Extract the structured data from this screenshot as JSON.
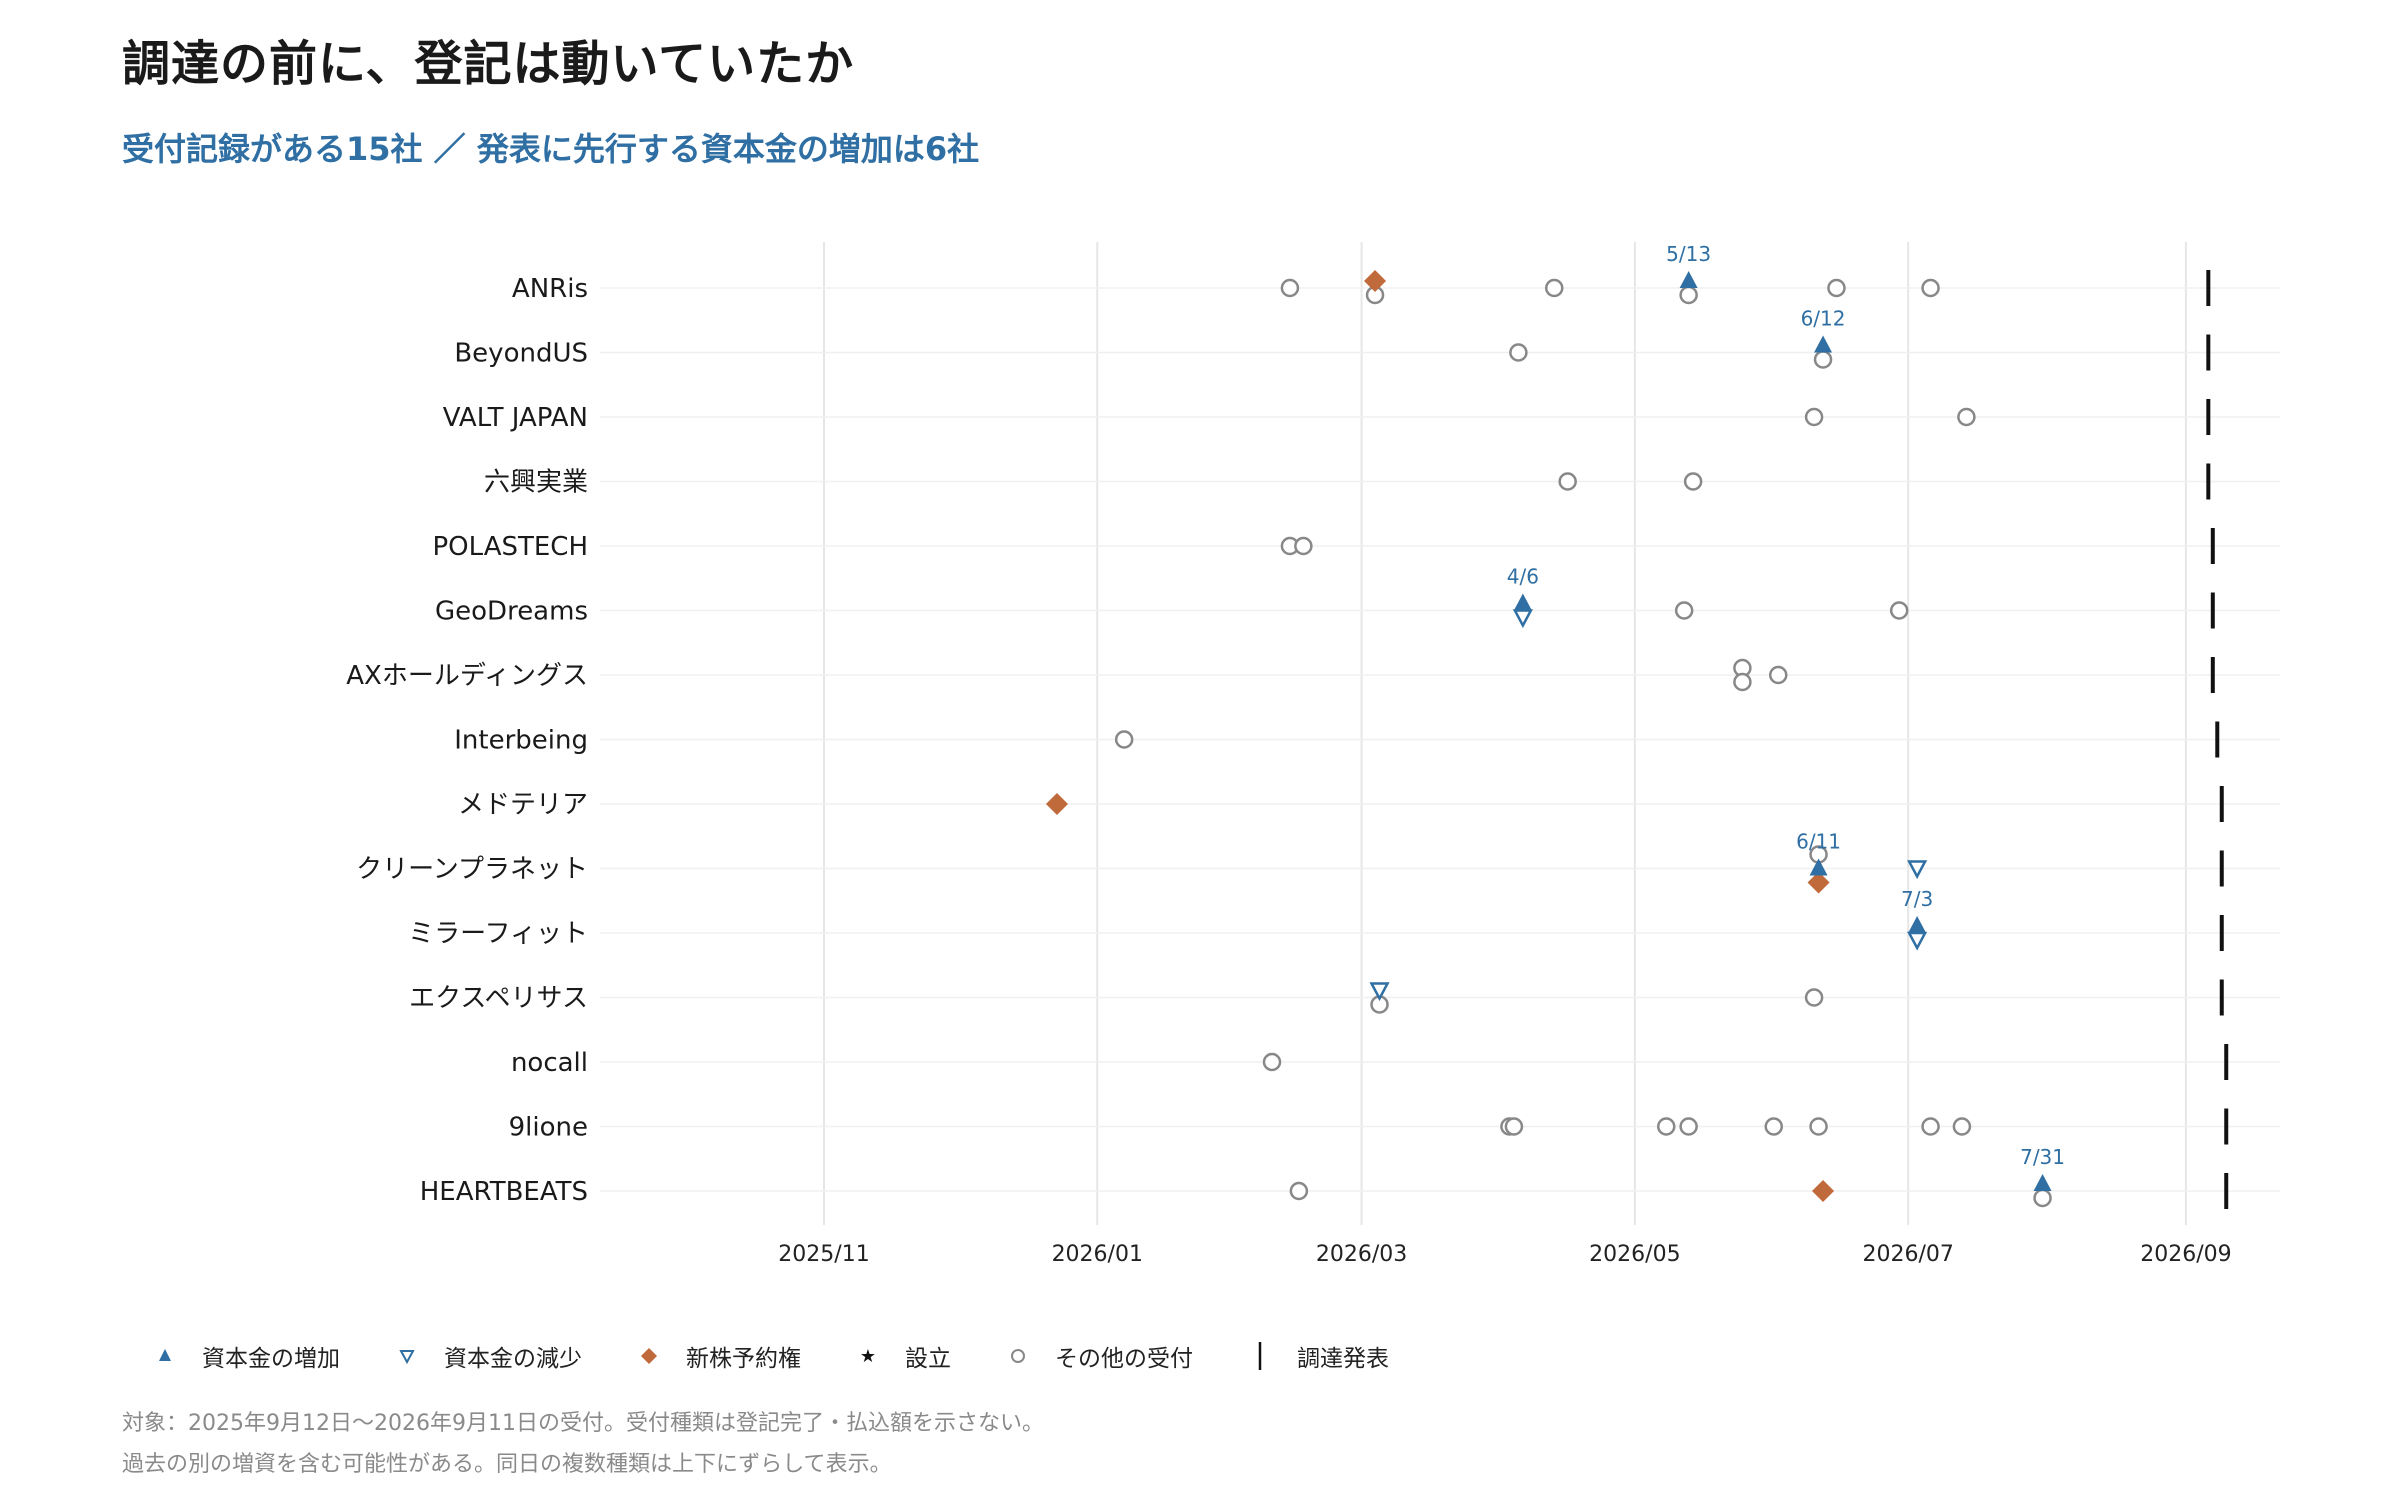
{
  "title": "調達の前に、登記は動いていたか",
  "subtitle": "受付記録がある15社 ／ 発表に先行する資本金の増加は6社",
  "footnote": {
    "line1": "対象：2025年9月12日〜2026年9月11日の受付。受付種類は登記完了・払込額を示さない。",
    "line2": "過去の別の増資を含む可能性がある。同日の複数種類は上下にずらして表示。"
  },
  "legend": [
    {
      "key": "increase",
      "label": "資本金の増加",
      "symbol": "triangle-up-filled-icon"
    },
    {
      "key": "decrease",
      "label": "資本金の減少",
      "symbol": "triangle-down-outline-icon"
    },
    {
      "key": "option",
      "label": "新株予約権",
      "symbol": "diamond-filled-icon"
    },
    {
      "key": "founding",
      "label": "設立",
      "symbol": "star-icon"
    },
    {
      "key": "other",
      "label": "その他の受付",
      "symbol": "circle-outline-icon"
    },
    {
      "key": "announce",
      "label": "調達発表",
      "symbol": "vertical-bar-icon"
    }
  ],
  "colors": {
    "increase": "#2f6fa3",
    "decrease": "#2f6fa3",
    "option": "#c0693a",
    "other": "#888888",
    "announce": "#111111",
    "grid": "#e6e6e6",
    "label": "#2f6fa3"
  },
  "chart_data": {
    "type": "scatter",
    "xaxis_type": "date",
    "xlim": [
      "2025-09-12",
      "2026-09-22"
    ],
    "xticks": [
      {
        "date": "2025-11-01",
        "label": "2025/11"
      },
      {
        "date": "2026-01-01",
        "label": "2026/01"
      },
      {
        "date": "2026-03-01",
        "label": "2026/03"
      },
      {
        "date": "2026-05-01",
        "label": "2026/05"
      },
      {
        "date": "2026-07-01",
        "label": "2026/07"
      },
      {
        "date": "2026-09-01",
        "label": "2026/09"
      }
    ],
    "grid": true,
    "legend_position": "bottom",
    "companies": [
      {
        "name": "ANRis",
        "announce": "2026-09-06",
        "events": [
          {
            "date": "2026-02-13",
            "type": "other"
          },
          {
            "date": "2026-03-04",
            "type": "option",
            "offset": -1
          },
          {
            "date": "2026-03-04",
            "type": "other",
            "offset": 1
          },
          {
            "date": "2026-04-13",
            "type": "other"
          },
          {
            "date": "2026-05-13",
            "type": "increase",
            "offset": -1,
            "label": "5/13"
          },
          {
            "date": "2026-05-13",
            "type": "other",
            "offset": 1
          },
          {
            "date": "2026-06-15",
            "type": "other"
          },
          {
            "date": "2026-07-06",
            "type": "other"
          }
        ]
      },
      {
        "name": "BeyondUS",
        "announce": "2026-09-06",
        "events": [
          {
            "date": "2026-04-05",
            "type": "other"
          },
          {
            "date": "2026-06-12",
            "type": "increase",
            "offset": -1,
            "label": "6/12"
          },
          {
            "date": "2026-06-12",
            "type": "other",
            "offset": 1
          }
        ]
      },
      {
        "name": "VALT JAPAN",
        "announce": "2026-09-06",
        "events": [
          {
            "date": "2026-06-10",
            "type": "other"
          },
          {
            "date": "2026-07-14",
            "type": "other"
          }
        ]
      },
      {
        "name": "六興実業",
        "announce": "2026-09-06",
        "events": [
          {
            "date": "2026-04-16",
            "type": "other"
          },
          {
            "date": "2026-05-14",
            "type": "other"
          }
        ]
      },
      {
        "name": "POLASTECH",
        "announce": "2026-09-07",
        "events": [
          {
            "date": "2026-02-13",
            "type": "other"
          },
          {
            "date": "2026-02-16",
            "type": "other"
          }
        ]
      },
      {
        "name": "GeoDreams",
        "announce": "2026-09-07",
        "events": [
          {
            "date": "2026-04-06",
            "type": "increase",
            "offset": -1,
            "label": "4/6"
          },
          {
            "date": "2026-04-06",
            "type": "decrease",
            "offset": 1
          },
          {
            "date": "2026-05-12",
            "type": "other"
          },
          {
            "date": "2026-06-29",
            "type": "other"
          }
        ]
      },
      {
        "name": "AXホールディングス",
        "announce": "2026-09-07",
        "events": [
          {
            "date": "2026-05-25",
            "type": "other",
            "offset": -1
          },
          {
            "date": "2026-05-25",
            "type": "other",
            "offset": 1
          },
          {
            "date": "2026-06-02",
            "type": "other"
          }
        ]
      },
      {
        "name": "Interbeing",
        "announce": "2026-09-08",
        "events": [
          {
            "date": "2026-01-07",
            "type": "other"
          }
        ]
      },
      {
        "name": "メドテリア",
        "announce": "2026-09-09",
        "events": [
          {
            "date": "2025-12-23",
            "type": "option"
          }
        ]
      },
      {
        "name": "クリーンプラネット",
        "announce": "2026-09-09",
        "events": [
          {
            "date": "2026-06-11",
            "type": "other",
            "offset": -2
          },
          {
            "date": "2026-06-11",
            "type": "increase",
            "offset": 0,
            "label": "6/11"
          },
          {
            "date": "2026-06-11",
            "type": "option",
            "offset": 2
          },
          {
            "date": "2026-07-03",
            "type": "decrease"
          }
        ]
      },
      {
        "name": "ミラーフィット",
        "announce": "2026-09-09",
        "events": [
          {
            "date": "2026-07-03",
            "type": "increase",
            "offset": -1,
            "label": "7/3"
          },
          {
            "date": "2026-07-03",
            "type": "decrease",
            "offset": 1
          }
        ]
      },
      {
        "name": "エクスペリサス",
        "announce": "2026-09-09",
        "events": [
          {
            "date": "2026-03-05",
            "type": "decrease",
            "offset": -1
          },
          {
            "date": "2026-03-05",
            "type": "other",
            "offset": 1
          },
          {
            "date": "2026-06-10",
            "type": "other"
          }
        ]
      },
      {
        "name": "nocall",
        "announce": "2026-09-10",
        "events": [
          {
            "date": "2026-02-09",
            "type": "other"
          }
        ]
      },
      {
        "name": "9lione",
        "announce": "2026-09-10",
        "events": [
          {
            "date": "2026-04-03",
            "type": "other"
          },
          {
            "date": "2026-04-04",
            "type": "other"
          },
          {
            "date": "2026-05-08",
            "type": "other"
          },
          {
            "date": "2026-05-13",
            "type": "other"
          },
          {
            "date": "2026-06-01",
            "type": "other"
          },
          {
            "date": "2026-06-11",
            "type": "other"
          },
          {
            "date": "2026-07-06",
            "type": "other"
          },
          {
            "date": "2026-07-13",
            "type": "other"
          }
        ]
      },
      {
        "name": "HEARTBEATS",
        "announce": "2026-09-10",
        "events": [
          {
            "date": "2026-02-15",
            "type": "other"
          },
          {
            "date": "2026-06-12",
            "type": "option"
          },
          {
            "date": "2026-07-31",
            "type": "increase",
            "offset": -1,
            "label": "7/31"
          },
          {
            "date": "2026-07-31",
            "type": "other",
            "offset": 1
          }
        ]
      }
    ]
  }
}
